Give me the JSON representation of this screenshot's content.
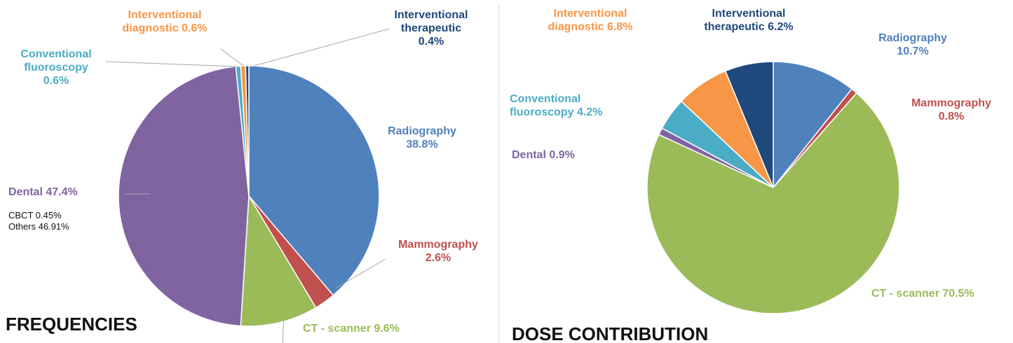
{
  "chart_data": [
    {
      "type": "pie",
      "title": "FREQUENCIES",
      "categories": [
        "Radiography",
        "Mammography",
        "CT - scanner",
        "Dental",
        "Conventional fluoroscopy",
        "Interventional diagnostic",
        "Interventional therapeutic"
      ],
      "values": [
        38.8,
        2.6,
        9.6,
        47.4,
        0.6,
        0.6,
        0.4
      ],
      "value_labels": [
        "38.8%",
        "2.6%",
        "9.6%",
        "47.4%",
        "0.6%",
        "0.6%",
        "0.4%"
      ],
      "colors": [
        "#4f81bd",
        "#c0504d",
        "#9bbb59",
        "#8064a2",
        "#4bacc6",
        "#f79646",
        "#1f497d"
      ],
      "annotations": [
        "CBCT 0.45%",
        "Others 46.91%"
      ]
    },
    {
      "type": "pie",
      "title": "DOSE CONTRIBUTION",
      "categories": [
        "Radiography",
        "Mammography",
        "CT - scanner",
        "Dental",
        "Conventional fluoroscopy",
        "Interventional diagnostic",
        "Interventional therapeutic"
      ],
      "values": [
        10.7,
        0.8,
        70.5,
        0.9,
        4.2,
        6.8,
        6.2
      ],
      "value_labels": [
        "10.7%",
        "0.8%",
        "70.5%",
        "0.9%",
        "4.2%",
        "6.8%",
        "6.2%"
      ],
      "colors": [
        "#4f81bd",
        "#c0504d",
        "#9bbb59",
        "#8064a2",
        "#4bacc6",
        "#f79646",
        "#1f497d"
      ]
    }
  ]
}
